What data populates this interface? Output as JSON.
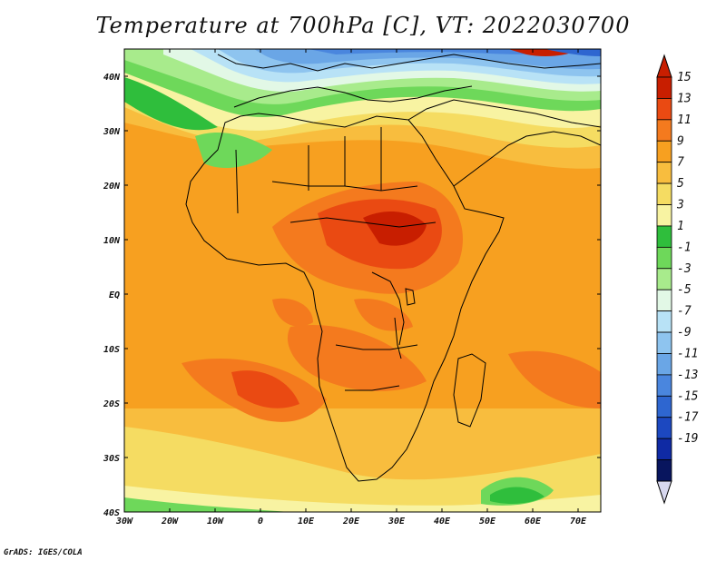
{
  "title": "Temperature at 700hPa [C], VT: 2022030700",
  "credit": "GrADS: IGES/COLA",
  "map": {
    "lat_labels": [
      "40N",
      "30N",
      "20N",
      "10N",
      "EQ",
      "10S",
      "20S",
      "30S",
      "40S"
    ],
    "lon_labels": [
      "30W",
      "20W",
      "10W",
      "0",
      "10E",
      "20E",
      "30E",
      "40E",
      "50E",
      "60E",
      "70E"
    ]
  },
  "colorbar": {
    "labels": [
      "15",
      "13",
      "11",
      "9",
      "7",
      "5",
      "3",
      "1",
      "-1",
      "-3",
      "-5",
      "-7",
      "-9",
      "-11",
      "-13",
      "-15",
      "-17",
      "-19"
    ],
    "colors": [
      "#c81e00",
      "#ea4a12",
      "#f47a1e",
      "#f7a020",
      "#f8bd3e",
      "#f5dc62",
      "#f8f3a2",
      "#2fbe3c",
      "#6ed85a",
      "#a8eb8c",
      "#e2f8e6",
      "#b8e2f6",
      "#8ec4ef",
      "#6aa6e6",
      "#4a86de",
      "#2e66d0",
      "#1c48c0",
      "#0f2aa4",
      "#08155e"
    ],
    "top_arrow_color": "#c81e00",
    "bottom_arrow_color": "#d8d8ef"
  }
}
